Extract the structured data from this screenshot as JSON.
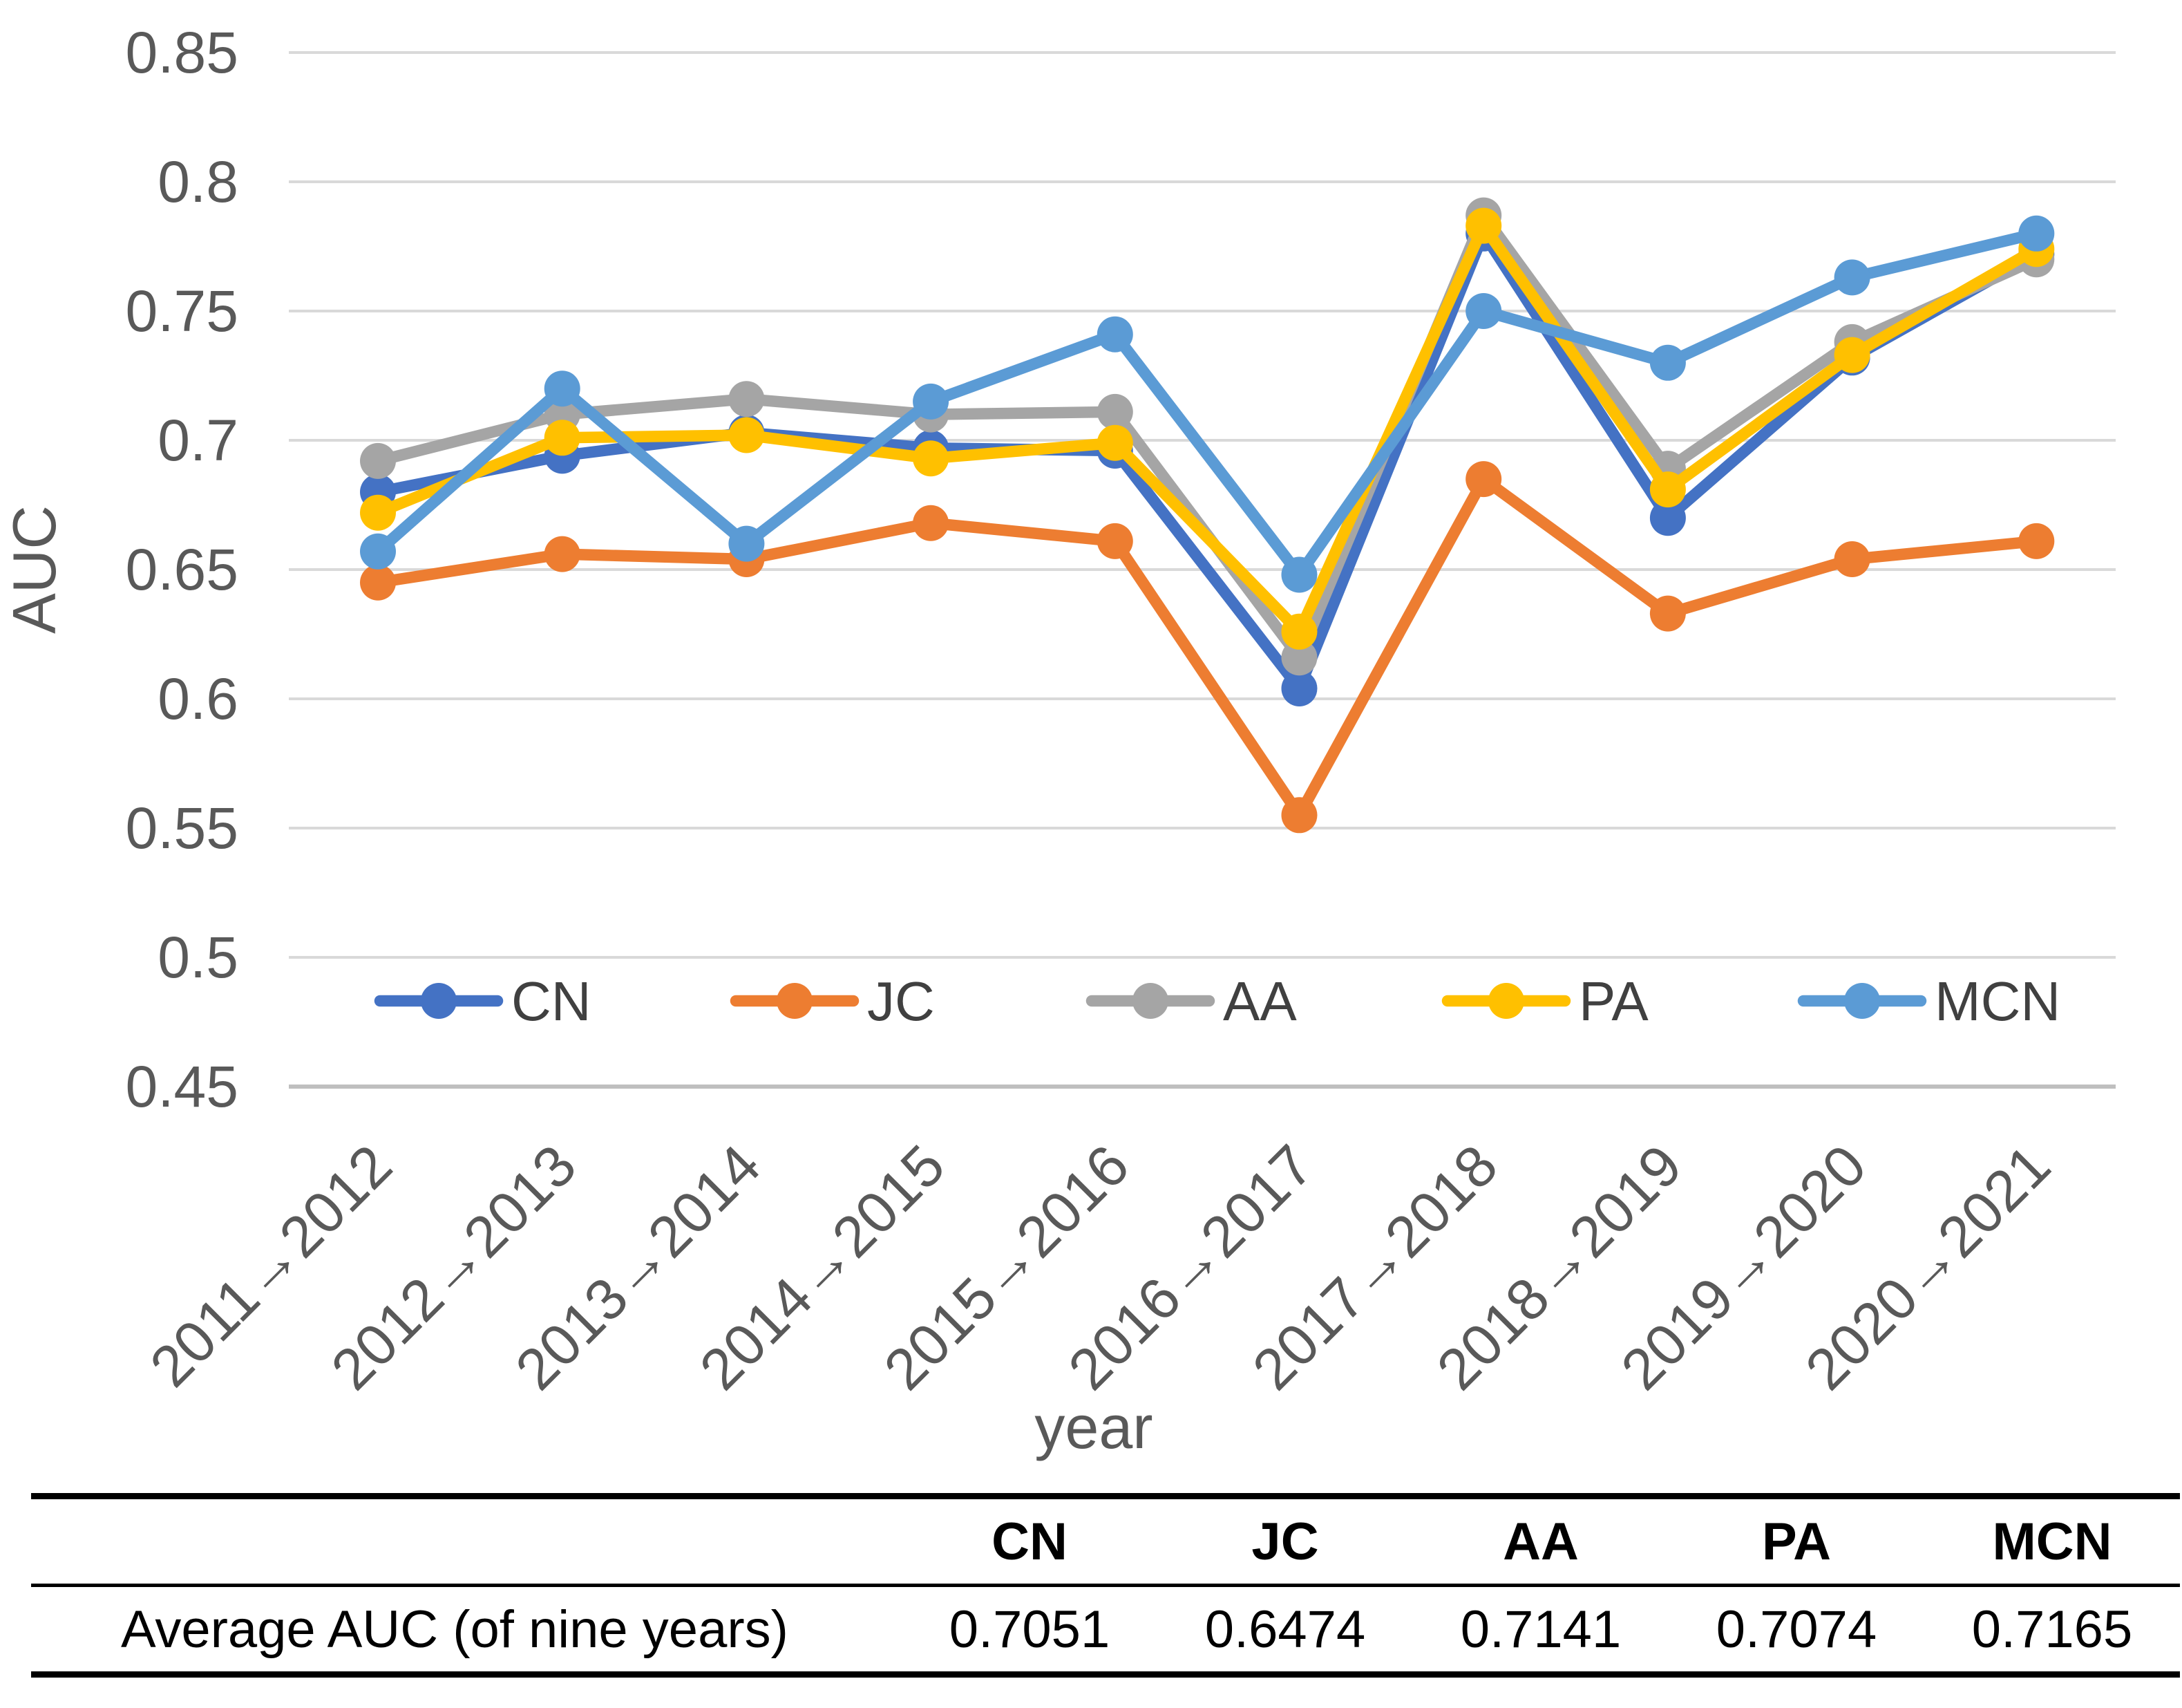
{
  "chart_data": {
    "type": "line",
    "title": "",
    "xlabel": "year",
    "ylabel": "AUC",
    "ylim": [
      0.45,
      0.85
    ],
    "ytick_step": 0.05,
    "grid": true,
    "legend_position": "bottom-inside",
    "categories": [
      "2011→2012",
      "2012→2013",
      "2013→2014",
      "2014→2015",
      "2015→2016",
      "2016→2017",
      "2017→2018",
      "2018→2019",
      "2019→2020",
      "2020→2021"
    ],
    "series": [
      {
        "name": "CN",
        "color": "#4472C4",
        "values": [
          0.68,
          0.694,
          0.703,
          0.697,
          0.696,
          0.604,
          0.78,
          0.67,
          0.732,
          0.772
        ]
      },
      {
        "name": "JC",
        "color": "#ED7D31",
        "values": [
          0.645,
          0.656,
          0.654,
          0.668,
          0.661,
          0.555,
          0.685,
          0.633,
          0.654,
          0.661
        ]
      },
      {
        "name": "AA",
        "color": "#A5A5A5",
        "values": [
          0.692,
          0.71,
          0.716,
          0.71,
          0.711,
          0.616,
          0.787,
          0.689,
          0.738,
          0.77
        ]
      },
      {
        "name": "PA",
        "color": "#FFC000",
        "values": [
          0.672,
          0.701,
          0.702,
          0.693,
          0.699,
          0.626,
          0.783,
          0.681,
          0.733,
          0.774
        ]
      },
      {
        "name": "MCN",
        "color": "#5B9BD5",
        "values": [
          0.657,
          0.72,
          0.66,
          0.715,
          0.741,
          0.648,
          0.75,
          0.73,
          0.763,
          0.78
        ]
      }
    ]
  },
  "table": {
    "columns": [
      "CN",
      "JC",
      "AA",
      "PA",
      "MCN"
    ],
    "rows": [
      {
        "label": "Average AUC (of nine years)",
        "values": [
          "0.7051",
          "0.6474",
          "0.7141",
          "0.7074",
          "0.7165"
        ]
      }
    ]
  },
  "style": {
    "grid_color": "#D9D9D9",
    "axis_line_color": "#BFBFBF",
    "tick_text_color": "#595959",
    "legend_text_color": "#404040"
  }
}
